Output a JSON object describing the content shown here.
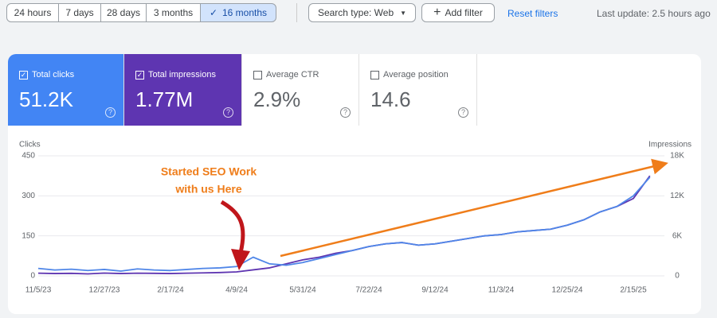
{
  "toolbar": {
    "date_ranges": [
      "24 hours",
      "7 days",
      "28 days",
      "3 months",
      "16 months"
    ],
    "selected_range": 4,
    "search_type": "Search type: Web",
    "add_filter": "Add filter",
    "reset_filters": "Reset filters",
    "last_update": "Last update: 2.5 hours ago"
  },
  "metrics": [
    {
      "label": "Total clicks",
      "value": "51.2K",
      "checked": true,
      "color": "#4285f4"
    },
    {
      "label": "Total impressions",
      "value": "1.77M",
      "checked": true,
      "color": "#5e35b1"
    },
    {
      "label": "Average CTR",
      "value": "2.9%",
      "checked": false,
      "color": "#ffffff"
    },
    {
      "label": "Average position",
      "value": "14.6",
      "checked": false,
      "color": "#ffffff"
    }
  ],
  "chart_data": {
    "type": "line",
    "y_label": "Clicks",
    "y2_label": "Impressions",
    "annotation": [
      "Started SEO Work",
      "with us Here"
    ],
    "categories": [
      "11/5/23",
      null,
      null,
      null,
      "12/27/23",
      null,
      null,
      null,
      "2/17/24",
      null,
      null,
      null,
      "4/9/24",
      null,
      null,
      null,
      "5/31/24",
      null,
      null,
      null,
      "7/22/24",
      null,
      null,
      null,
      "9/12/24",
      null,
      null,
      null,
      "11/3/24",
      null,
      null,
      null,
      "12/25/24",
      null,
      null,
      null,
      "2/15/25",
      null
    ],
    "series": [
      {
        "name": "Clicks",
        "color": "#4f86e8",
        "values": [
          28,
          22,
          25,
          20,
          24,
          18,
          26,
          22,
          20,
          24,
          28,
          30,
          35,
          70,
          45,
          40,
          50,
          65,
          80,
          95,
          110,
          120,
          125,
          115,
          120,
          130,
          140,
          150,
          155,
          165,
          170,
          175,
          190,
          210,
          240,
          260,
          300,
          370
        ]
      },
      {
        "name": "Impressions",
        "color": "#5e35b1",
        "axis": "y2",
        "values": [
          400,
          350,
          380,
          300,
          420,
          350,
          400,
          380,
          350,
          400,
          450,
          500,
          600,
          900,
          1200,
          1800,
          2400,
          2800,
          3400,
          3800,
          4400,
          4800,
          5000,
          4600,
          4800,
          5200,
          5600,
          6000,
          6200,
          6600,
          6800,
          7000,
          7600,
          8400,
          9600,
          10400,
          11600,
          15000
        ]
      }
    ],
    "ylim": [
      0,
      450
    ],
    "yticks": [
      0,
      150,
      300,
      450
    ],
    "y2lim": [
      0,
      18000
    ],
    "y2ticks": [
      0,
      {
        "value": 6000,
        "label": "6K"
      },
      {
        "value": 12000,
        "label": "12K"
      },
      {
        "value": 18000,
        "label": "18K"
      }
    ],
    "grid": true
  }
}
